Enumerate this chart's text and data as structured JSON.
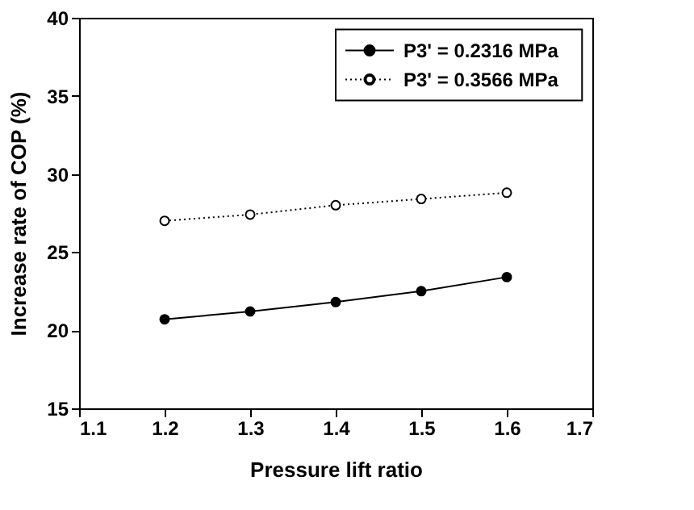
{
  "chart_data": {
    "type": "line",
    "xlabel": "Pressure lift ratio",
    "ylabel": "Increase rate of COP (%)",
    "x": [
      1.2,
      1.3,
      1.4,
      1.5,
      1.6
    ],
    "series": [
      {
        "name": "P3' = 0.2316 MPa",
        "color": "#000000",
        "values": [
          20.7,
          21.2,
          21.8,
          22.5,
          23.4
        ],
        "marker": "circle",
        "line_style": "solid"
      },
      {
        "name": "P3' = 0.3566 MPa",
        "color": "#000000",
        "values": [
          27.0,
          27.4,
          28.0,
          28.4,
          28.8
        ],
        "marker": "circle",
        "line_style": "dotted"
      }
    ],
    "xlim": [
      1.1,
      1.7
    ],
    "xticks": [
      1.1,
      1.2,
      1.3,
      1.4,
      1.5,
      1.6,
      1.7
    ],
    "ylim": [
      15,
      40
    ],
    "yticks": [
      15,
      20,
      25,
      30,
      35,
      40
    ],
    "grid": false,
    "legend": "top right"
  }
}
